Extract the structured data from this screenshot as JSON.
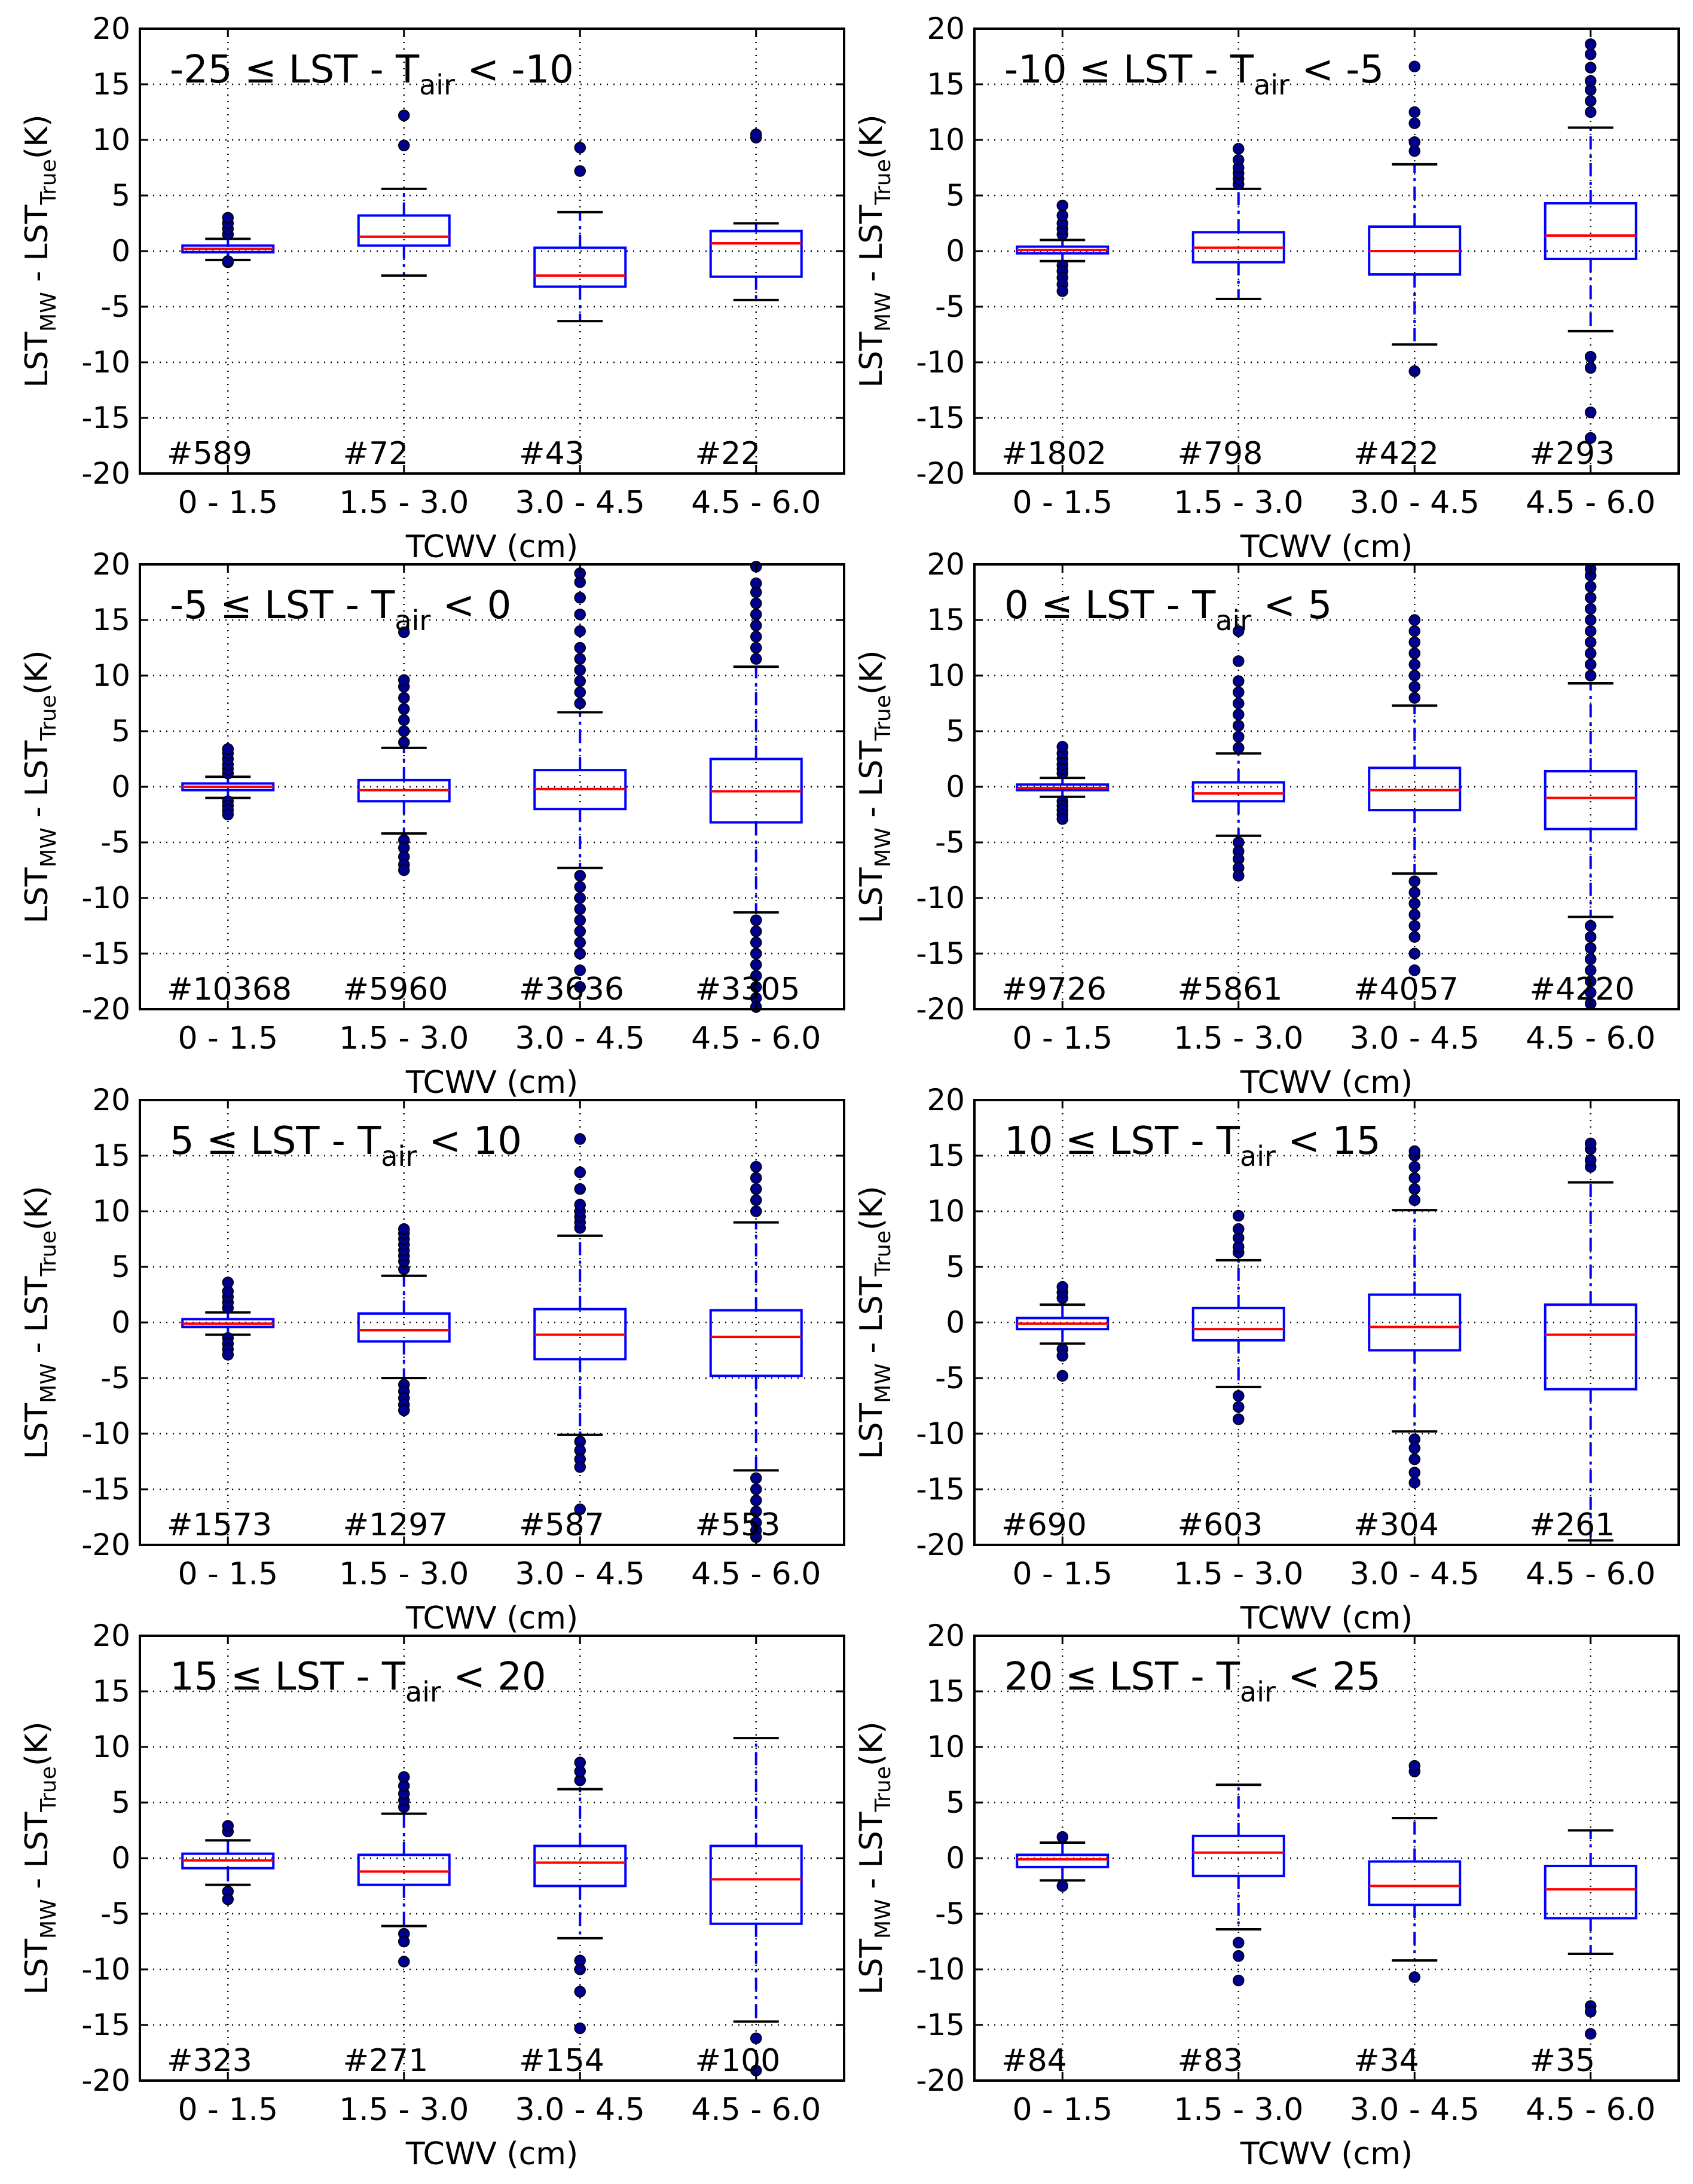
{
  "colors": {
    "box": "#0000ff",
    "median": "#ff0000",
    "whisker": "#0000ff",
    "cap": "#000000",
    "flier": "#00008b",
    "grid": "#000000"
  },
  "chart_data": [
    {
      "type": "box",
      "title_parts": {
        "lhs": "-25",
        "rhs": "-10",
        "op_left": "≤",
        "op_right": "<"
      },
      "xlabel": "TCWV (cm)",
      "ylabel_parts": {
        "a": "LST",
        "a_sub": "MW",
        "mid": " - LST",
        "b_sub": "True",
        "unit": "(K)"
      },
      "categories": [
        "0 - 1.5",
        "1.5 - 3.0",
        "3.0 - 4.5",
        "4.5 - 6.0"
      ],
      "yticks": [
        "20",
        "15",
        "10",
        "5",
        "0",
        "-5",
        "-10",
        "-15",
        "-20"
      ],
      "ylim": [
        -20,
        20
      ],
      "counts": [
        "#589",
        "#72",
        "#43",
        "#22"
      ],
      "boxes": [
        {
          "q1": -0.1,
          "median": 0.2,
          "q3": 0.5,
          "whislo": -0.8,
          "whishi": 1.1,
          "fliers": [
            1.5,
            2.0,
            2.5,
            3.0,
            -1.0,
            -0.9
          ]
        },
        {
          "q1": 0.5,
          "median": 1.3,
          "q3": 3.2,
          "whislo": -2.2,
          "whishi": 5.6,
          "fliers": [
            9.5,
            12.2
          ]
        },
        {
          "q1": -3.2,
          "median": -2.2,
          "q3": 0.3,
          "whislo": -6.3,
          "whishi": 3.5,
          "fliers": [
            7.2,
            9.3
          ]
        },
        {
          "q1": -2.3,
          "median": 0.7,
          "q3": 1.8,
          "whislo": -4.4,
          "whishi": 2.5,
          "fliers": [
            10.2,
            10.5
          ]
        }
      ]
    },
    {
      "type": "box",
      "title_parts": {
        "lhs": "-10",
        "rhs": "-5",
        "op_left": "≤",
        "op_right": "<"
      },
      "xlabel": "TCWV (cm)",
      "ylabel_parts": {
        "a": "LST",
        "a_sub": "MW",
        "mid": " - LST",
        "b_sub": "True",
        "unit": "(K)"
      },
      "categories": [
        "0 - 1.5",
        "1.5 - 3.0",
        "3.0 - 4.5",
        "4.5 - 6.0"
      ],
      "yticks": [
        "20",
        "15",
        "10",
        "5",
        "0",
        "-5",
        "-10",
        "-15",
        "-20"
      ],
      "ylim": [
        -20,
        20
      ],
      "counts": [
        "#1802",
        "#798",
        "#422",
        "#293"
      ],
      "boxes": [
        {
          "q1": -0.2,
          "median": 0.1,
          "q3": 0.4,
          "whislo": -0.9,
          "whishi": 1.0,
          "fliers": [
            1.5,
            2.0,
            2.5,
            3.2,
            4.1,
            -1.3,
            -1.8,
            -2.4,
            -3.0,
            -3.6
          ]
        },
        {
          "q1": -1.0,
          "median": 0.3,
          "q3": 1.7,
          "whislo": -4.3,
          "whishi": 5.6,
          "fliers": [
            6.0,
            6.5,
            7.0,
            7.5,
            8.2,
            9.2
          ]
        },
        {
          "q1": -2.1,
          "median": 0.0,
          "q3": 2.2,
          "whislo": -8.4,
          "whishi": 7.8,
          "fliers": [
            9.0,
            9.8,
            11.5,
            12.5,
            16.6,
            -10.8
          ]
        },
        {
          "q1": -0.7,
          "median": 1.4,
          "q3": 4.3,
          "whislo": -7.2,
          "whishi": 11.1,
          "fliers": [
            12.5,
            13.5,
            14.5,
            15.3,
            16.5,
            17.7,
            18.6,
            -9.5,
            -10.5,
            -14.5,
            -16.8
          ]
        }
      ]
    },
    {
      "type": "box",
      "title_parts": {
        "lhs": "-5",
        "rhs": "0",
        "op_left": "≤",
        "op_right": "<"
      },
      "xlabel": "TCWV (cm)",
      "ylabel_parts": {
        "a": "LST",
        "a_sub": "MW",
        "mid": " - LST",
        "b_sub": "True",
        "unit": "(K)"
      },
      "categories": [
        "0 - 1.5",
        "1.5 - 3.0",
        "3.0 - 4.5",
        "4.5 - 6.0"
      ],
      "yticks": [
        "20",
        "15",
        "10",
        "5",
        "0",
        "-5",
        "-10",
        "-15",
        "-20"
      ],
      "ylim": [
        -20,
        20
      ],
      "counts": [
        "#10368",
        "#5960",
        "#3636",
        "#3305"
      ],
      "boxes": [
        {
          "q1": -0.3,
          "median": 0.0,
          "q3": 0.3,
          "whislo": -1.0,
          "whishi": 0.9,
          "fliers": [
            1.2,
            1.6,
            2.0,
            2.5,
            3.0,
            3.4,
            -1.3,
            -1.7,
            -2.1,
            -2.5
          ]
        },
        {
          "q1": -1.3,
          "median": -0.3,
          "q3": 0.6,
          "whislo": -4.2,
          "whishi": 3.5,
          "fliers": [
            4.0,
            5.0,
            6.0,
            7.0,
            8.0,
            9.0,
            9.6,
            13.9,
            -4.8,
            -5.5,
            -6.3,
            -7.0,
            -7.5
          ]
        },
        {
          "q1": -2.0,
          "median": -0.2,
          "q3": 1.5,
          "whislo": -7.3,
          "whishi": 6.7,
          "fliers": [
            7.5,
            8.5,
            9.5,
            10.5,
            11.5,
            12.5,
            14.0,
            15.5,
            17.0,
            18.4,
            19.2,
            -8.0,
            -9.0,
            -10.0,
            -11.0,
            -12.0,
            -13.0,
            -14.0,
            -15.0,
            -16.5,
            -18.0
          ]
        },
        {
          "q1": -3.2,
          "median": -0.4,
          "q3": 2.5,
          "whislo": -11.3,
          "whishi": 10.8,
          "fliers": [
            11.5,
            12.5,
            13.5,
            14.5,
            15.5,
            16.5,
            17.5,
            18.3,
            19.8,
            -12.0,
            -13.0,
            -14.0,
            -15.0,
            -16.0,
            -17.0,
            -18.0,
            -19.0,
            -19.8
          ]
        }
      ]
    },
    {
      "type": "box",
      "title_parts": {
        "lhs": "0",
        "rhs": "5",
        "op_left": "≤",
        "op_right": "<"
      },
      "xlabel": "TCWV (cm)",
      "ylabel_parts": {
        "a": "LST",
        "a_sub": "MW",
        "mid": " - LST",
        "b_sub": "True",
        "unit": "(K)"
      },
      "categories": [
        "0 - 1.5",
        "1.5 - 3.0",
        "3.0 - 4.5",
        "4.5 - 6.0"
      ],
      "yticks": [
        "20",
        "15",
        "10",
        "5",
        "0",
        "-5",
        "-10",
        "-15",
        "-20"
      ],
      "ylim": [
        -20,
        20
      ],
      "counts": [
        "#9726",
        "#5861",
        "#4057",
        "#4220"
      ],
      "boxes": [
        {
          "q1": -0.3,
          "median": -0.1,
          "q3": 0.2,
          "whislo": -0.9,
          "whishi": 0.8,
          "fliers": [
            1.2,
            1.6,
            2.0,
            2.5,
            3.0,
            3.6,
            -1.3,
            -1.7,
            -2.1,
            -2.5,
            -2.9
          ]
        },
        {
          "q1": -1.3,
          "median": -0.6,
          "q3": 0.4,
          "whislo": -4.4,
          "whishi": 3.0,
          "fliers": [
            3.5,
            4.5,
            5.5,
            6.5,
            7.5,
            8.5,
            9.5,
            11.3,
            14.0,
            -5.0,
            -5.8,
            -6.5,
            -7.3,
            -8.0
          ]
        },
        {
          "q1": -2.1,
          "median": -0.3,
          "q3": 1.7,
          "whislo": -7.8,
          "whishi": 7.3,
          "fliers": [
            8.0,
            9.0,
            10.0,
            11.0,
            12.0,
            13.0,
            14.0,
            15.0,
            -8.5,
            -9.5,
            -10.5,
            -11.5,
            -12.5,
            -13.5,
            -15.0,
            -16.5
          ]
        },
        {
          "q1": -3.8,
          "median": -1.0,
          "q3": 1.4,
          "whislo": -11.7,
          "whishi": 9.3,
          "fliers": [
            10.0,
            11.0,
            12.0,
            13.0,
            14.0,
            15.0,
            16.0,
            17.0,
            18.0,
            19.0,
            19.6,
            -12.5,
            -13.5,
            -14.5,
            -15.5,
            -16.5,
            -17.5,
            -18.5,
            -19.5
          ]
        }
      ]
    },
    {
      "type": "box",
      "title_parts": {
        "lhs": "5",
        "rhs": "10",
        "op_left": "≤",
        "op_right": "<"
      },
      "xlabel": "TCWV (cm)",
      "ylabel_parts": {
        "a": "LST",
        "a_sub": "MW",
        "mid": " - LST",
        "b_sub": "True",
        "unit": "(K)"
      },
      "categories": [
        "0 - 1.5",
        "1.5 - 3.0",
        "3.0 - 4.5",
        "4.5 - 6.0"
      ],
      "yticks": [
        "20",
        "15",
        "10",
        "5",
        "0",
        "-5",
        "-10",
        "-15",
        "-20"
      ],
      "ylim": [
        -20,
        20
      ],
      "counts": [
        "#1573",
        "#1297",
        "#587",
        "#553"
      ],
      "boxes": [
        {
          "q1": -0.4,
          "median": -0.1,
          "q3": 0.3,
          "whislo": -1.1,
          "whishi": 0.9,
          "fliers": [
            1.3,
            1.8,
            2.3,
            2.8,
            3.6,
            -1.4,
            -1.9,
            -2.4,
            -2.9
          ]
        },
        {
          "q1": -1.7,
          "median": -0.7,
          "q3": 0.8,
          "whislo": -5.0,
          "whishi": 4.2,
          "fliers": [
            4.8,
            5.5,
            6.0,
            6.5,
            7.0,
            7.5,
            8.0,
            8.4,
            -5.6,
            -6.2,
            -6.8,
            -7.4,
            -7.9
          ]
        },
        {
          "q1": -3.3,
          "median": -1.1,
          "q3": 1.2,
          "whislo": -10.1,
          "whishi": 7.8,
          "fliers": [
            8.5,
            9.0,
            9.5,
            10.0,
            10.6,
            12.0,
            13.5,
            16.5,
            -10.7,
            -11.5,
            -12.3,
            -13.0,
            -16.8
          ]
        },
        {
          "q1": -4.8,
          "median": -1.3,
          "q3": 1.1,
          "whislo": -13.3,
          "whishi": 9.0,
          "fliers": [
            10.0,
            11.0,
            12.0,
            13.0,
            14.0,
            -14.0,
            -15.0,
            -16.0,
            -17.0,
            -18.0,
            -18.7,
            -19.3
          ]
        }
      ]
    },
    {
      "type": "box",
      "title_parts": {
        "lhs": "10",
        "rhs": "15",
        "op_left": "≤",
        "op_right": "<"
      },
      "xlabel": "TCWV (cm)",
      "ylabel_parts": {
        "a": "LST",
        "a_sub": "MW",
        "mid": " - LST",
        "b_sub": "True",
        "unit": "(K)"
      },
      "categories": [
        "0 - 1.5",
        "1.5 - 3.0",
        "3.0 - 4.5",
        "4.5 - 6.0"
      ],
      "yticks": [
        "20",
        "15",
        "10",
        "5",
        "0",
        "-5",
        "-10",
        "-15",
        "-20"
      ],
      "ylim": [
        -20,
        20
      ],
      "counts": [
        "#690",
        "#603",
        "#304",
        "#261"
      ],
      "boxes": [
        {
          "q1": -0.6,
          "median": -0.1,
          "q3": 0.4,
          "whislo": -1.9,
          "whishi": 1.6,
          "fliers": [
            2.2,
            2.7,
            3.2,
            -2.4,
            -3.0,
            -4.8
          ]
        },
        {
          "q1": -1.6,
          "median": -0.6,
          "q3": 1.3,
          "whislo": -5.8,
          "whishi": 5.6,
          "fliers": [
            6.3,
            6.8,
            7.6,
            8.4,
            9.6,
            -6.6,
            -7.6,
            -8.7
          ]
        },
        {
          "q1": -2.5,
          "median": -0.4,
          "q3": 2.5,
          "whislo": -9.8,
          "whishi": 10.1,
          "fliers": [
            11.0,
            12.0,
            13.0,
            14.0,
            15.0,
            15.4,
            -10.5,
            -11.3,
            -12.3,
            -13.5,
            -14.4
          ]
        },
        {
          "q1": -6.0,
          "median": -1.1,
          "q3": 1.6,
          "whislo": -19.6,
          "whishi": 12.6,
          "fliers": [
            14.0,
            14.6,
            15.6,
            16.1
          ]
        }
      ]
    },
    {
      "type": "box",
      "title_parts": {
        "lhs": "15",
        "rhs": "20",
        "op_left": "≤",
        "op_right": "<"
      },
      "xlabel": "TCWV (cm)",
      "ylabel_parts": {
        "a": "LST",
        "a_sub": "MW",
        "mid": " - LST",
        "b_sub": "True",
        "unit": "(K)"
      },
      "categories": [
        "0 - 1.5",
        "1.5 - 3.0",
        "3.0 - 4.5",
        "4.5 - 6.0"
      ],
      "yticks": [
        "20",
        "15",
        "10",
        "5",
        "0",
        "-5",
        "-10",
        "-15",
        "-20"
      ],
      "ylim": [
        -20,
        20
      ],
      "counts": [
        "#323",
        "#271",
        "#154",
        "#100"
      ],
      "boxes": [
        {
          "q1": -0.9,
          "median": -0.2,
          "q3": 0.4,
          "whislo": -2.4,
          "whishi": 1.6,
          "fliers": [
            2.4,
            2.9,
            -3.0,
            -3.7
          ]
        },
        {
          "q1": -2.4,
          "median": -1.2,
          "q3": 0.3,
          "whislo": -6.1,
          "whishi": 4.0,
          "fliers": [
            4.6,
            5.2,
            5.8,
            6.5,
            7.3,
            -6.8,
            -7.5,
            -9.3
          ]
        },
        {
          "q1": -2.5,
          "median": -0.4,
          "q3": 1.1,
          "whislo": -7.2,
          "whishi": 6.2,
          "fliers": [
            7.0,
            7.8,
            8.6,
            -9.2,
            -10.0,
            -12.0,
            -15.3
          ]
        },
        {
          "q1": -5.9,
          "median": -1.9,
          "q3": 1.1,
          "whislo": -14.7,
          "whishi": 10.8,
          "fliers": [
            -16.2,
            -19.1
          ]
        }
      ]
    },
    {
      "type": "box",
      "title_parts": {
        "lhs": "20",
        "rhs": "25",
        "op_left": "≤",
        "op_right": "<"
      },
      "xlabel": "TCWV (cm)",
      "ylabel_parts": {
        "a": "LST",
        "a_sub": "MW",
        "mid": " - LST",
        "b_sub": "True",
        "unit": "(K)"
      },
      "categories": [
        "0 - 1.5",
        "1.5 - 3.0",
        "3.0 - 4.5",
        "4.5 - 6.0"
      ],
      "yticks": [
        "20",
        "15",
        "10",
        "5",
        "0",
        "-5",
        "-10",
        "-15",
        "-20"
      ],
      "ylim": [
        -20,
        20
      ],
      "counts": [
        "#84",
        "#83",
        "#34",
        "#35"
      ],
      "boxes": [
        {
          "q1": -0.8,
          "median": -0.1,
          "q3": 0.3,
          "whislo": -2.0,
          "whishi": 1.4,
          "fliers": [
            1.9,
            -2.5
          ]
        },
        {
          "q1": -1.6,
          "median": 0.5,
          "q3": 2.0,
          "whislo": -6.4,
          "whishi": 6.6,
          "fliers": [
            -7.6,
            -8.8,
            -11.0
          ]
        },
        {
          "q1": -4.2,
          "median": -2.5,
          "q3": -0.3,
          "whislo": -9.2,
          "whishi": 3.6,
          "fliers": [
            7.8,
            8.3,
            -10.7
          ]
        },
        {
          "q1": -5.4,
          "median": -2.8,
          "q3": -0.7,
          "whislo": -8.6,
          "whishi": 2.5,
          "fliers": [
            -13.3,
            -13.8,
            -15.8
          ]
        }
      ]
    }
  ]
}
